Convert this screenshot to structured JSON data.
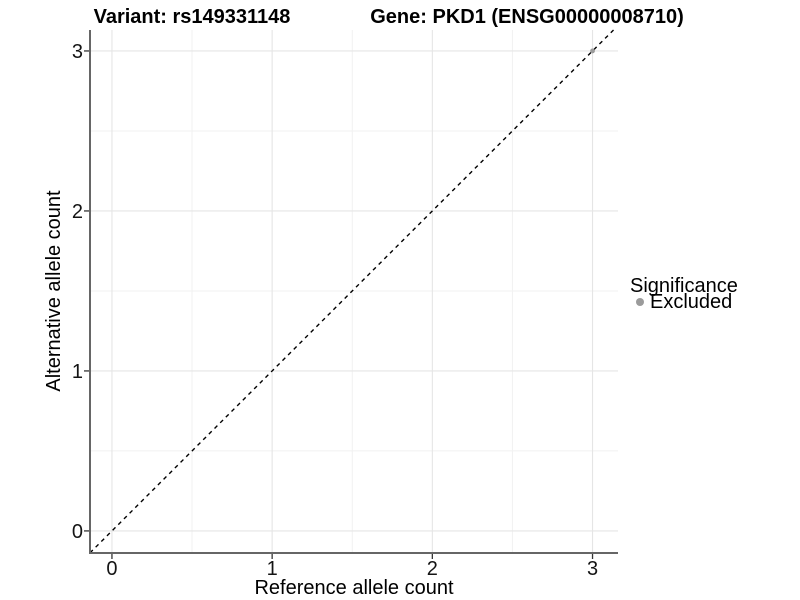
{
  "titles": {
    "variant": "Variant: rs149331148",
    "gene": "Gene: PKD1 (ENSG00000008710)"
  },
  "axes": {
    "x": {
      "label": "Reference allele count",
      "ticks": [
        "0",
        "1",
        "2",
        "3"
      ]
    },
    "y": {
      "label": "Alternative allele count",
      "ticks": [
        "0",
        "1",
        "2",
        "3"
      ]
    }
  },
  "legend": {
    "title": "Significance",
    "items": [
      {
        "label": "Excluded",
        "color": "#9b9b9b"
      }
    ]
  },
  "chart_data": {
    "type": "scatter",
    "title": "Variant: rs149331148 / Gene: PKD1 (ENSG00000008710)",
    "xlabel": "Reference allele count",
    "ylabel": "Alternative allele count",
    "xlim": [
      -0.137,
      3.159
    ],
    "ylim": [
      -0.138,
      3.131
    ],
    "x_ticks": [
      0,
      1,
      2,
      3
    ],
    "y_ticks": [
      0,
      1,
      2,
      3
    ],
    "minor_gridlines_x": [
      0.5,
      1.5,
      2.5
    ],
    "minor_gridlines_y": [
      0.5,
      1.5,
      2.5
    ],
    "grid": "on",
    "legend_position": "right",
    "series": [
      {
        "name": "Excluded",
        "color": "#9b9b9b",
        "points": [
          {
            "x": 3,
            "y": 3
          }
        ]
      }
    ],
    "reference_line": {
      "kind": "identity",
      "equation": "y = x",
      "style": "dashed",
      "color": "#000000"
    },
    "colors": {
      "grid_major": "#e5e5e5",
      "grid_minor": "#f1f1f1",
      "axis_line": "#666666",
      "tick_mark": "#333333",
      "tick_text": "#141414",
      "background": "#ffffff"
    }
  }
}
